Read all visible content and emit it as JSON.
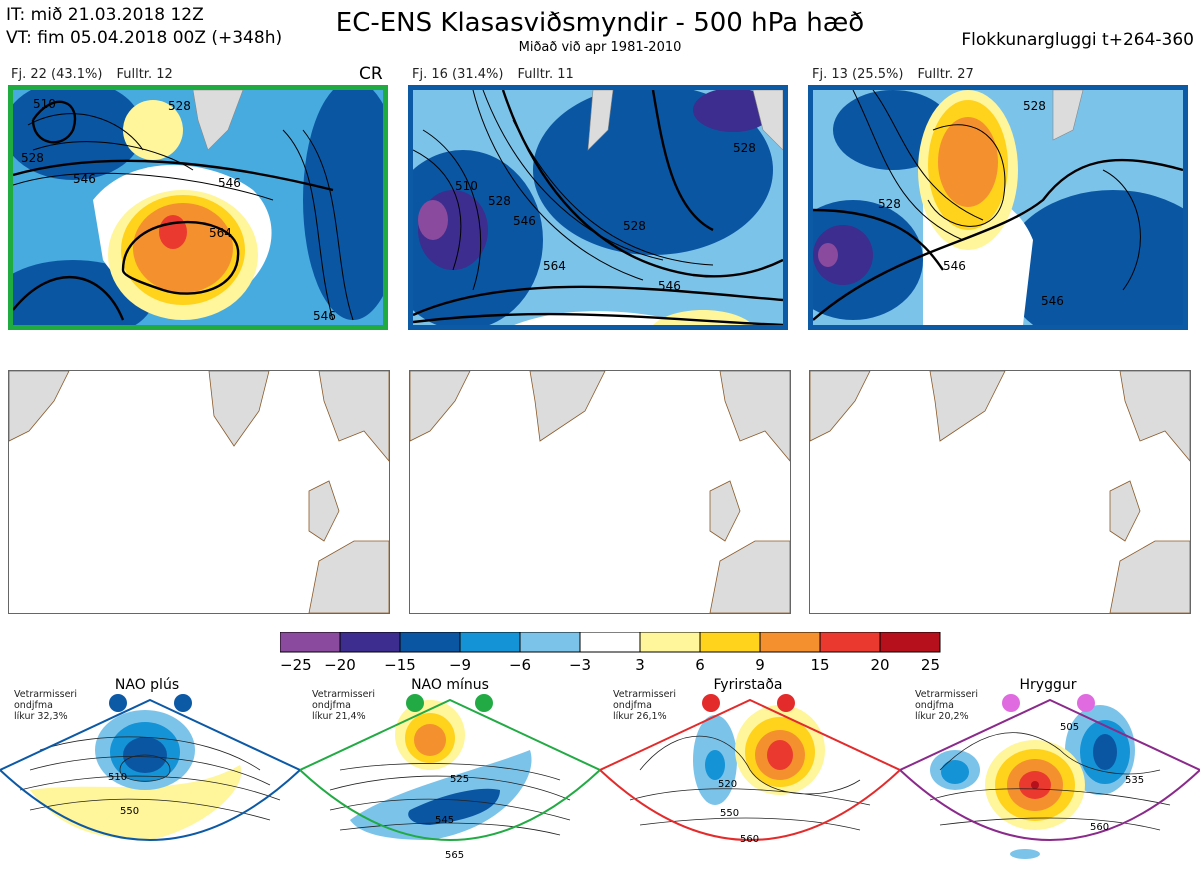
{
  "header": {
    "init_time": "IT: mið 21.03.2018 12Z",
    "valid_time": "VT: fim 05.04.2018 00Z  (+348h)",
    "title": "EC-ENS Klasasviðsmyndir - 500 hPa hæð",
    "subtitle": "Miðað við apr 1981-2010",
    "window": "Flokkunargluggi t+264-360"
  },
  "clusters": [
    {
      "count": "Fj. 22 (43.1%)",
      "rep": "Fulltr. 12",
      "tag": "CR",
      "border_color": "#1fab3f",
      "contour_labels": [
        "528",
        "546",
        "546",
        "564",
        "546",
        "528",
        "510"
      ]
    },
    {
      "count": "Fj. 16 (31.4%)",
      "rep": "Fulltr. 11",
      "tag": "",
      "border_color": "#0c59a6",
      "contour_labels": [
        "510",
        "528",
        "546",
        "564",
        "546",
        "528",
        "528"
      ]
    },
    {
      "count": "Fj. 13 (25.5%)",
      "rep": "Fulltr. 27",
      "tag": "",
      "border_color": "#0c59a6",
      "contour_labels": [
        "528",
        "546",
        "546",
        "528"
      ]
    }
  ],
  "colorbar": {
    "ticks": [
      "−25",
      "−20",
      "−15",
      "−9",
      "−6",
      "−3",
      "3",
      "6",
      "9",
      "15",
      "20",
      "25"
    ],
    "colors": [
      "#8a4a9d",
      "#3c2d8e",
      "#0a56a3",
      "#1493d6",
      "#7cc3ea",
      "#ffffff",
      "#fff59a",
      "#ffd21c",
      "#f5902e",
      "#ea3a2f",
      "#b5101c"
    ]
  },
  "regimes": [
    {
      "name": "NAO plús",
      "note": [
        "Vetrarmisseri",
        "ondjfma",
        "líkur 32,3%"
      ],
      "color": "#0c59a6",
      "labels": [
        "510",
        "550"
      ]
    },
    {
      "name": "NAO mínus",
      "note": [
        "Vetrarmisseri",
        "ondjfma",
        "líkur 21,4%"
      ],
      "color": "#22aa44",
      "labels": [
        "525",
        "545",
        "565"
      ]
    },
    {
      "name": "Fyrirstaða",
      "note": [
        "Vetrarmisseri",
        "ondjfma",
        "líkur 26,1%"
      ],
      "color": "#e32b2b",
      "labels": [
        "520",
        "550",
        "560"
      ]
    },
    {
      "name": "Hryggur",
      "note": [
        "Vetrarmisseri",
        "ondjfma",
        "líkur 20,2%"
      ],
      "color": "#e06be0",
      "labels": [
        "505",
        "535",
        "560"
      ]
    }
  ]
}
